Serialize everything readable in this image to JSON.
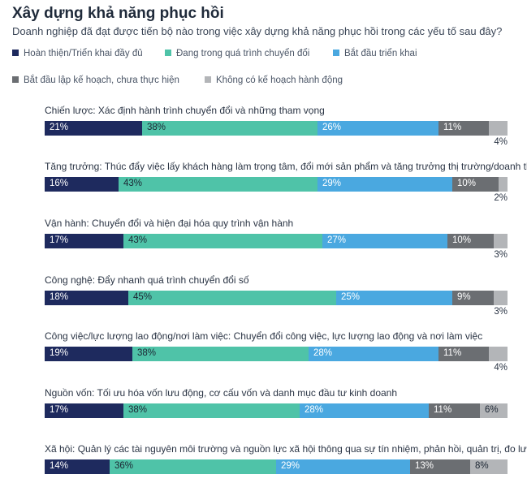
{
  "title": "Xây dựng khả năng phục hồi",
  "subtitle": "Doanh nghiệp đã đạt được tiến bộ nào trong việc xây dựng khả năng phục hồi trong các yếu tố sau đây?",
  "legend": [
    {
      "label": "Hoàn thiện/Triển khai đầy đủ",
      "color": "#1e2a5e"
    },
    {
      "label": "Đang trong quá trình chuyển đổi",
      "color": "#4fc3a8"
    },
    {
      "label": "Bắt đầu triển khai",
      "color": "#4aa8e0"
    },
    {
      "label": "Bắt đầu lập kế hoạch, chưa thực hiện",
      "color": "#6b6e72"
    },
    {
      "label": "Không có kế hoạch hành động",
      "color": "#b3b5b8"
    }
  ],
  "chart_data": {
    "type": "bar",
    "orientation": "horizontal",
    "stacked": true,
    "unit": "%",
    "categories": [
      "Chiến lược: Xác định hành trình chuyển đổi và những tham vọng",
      "Tăng trưởng: Thúc đẩy việc lấy khách hàng làm trọng tâm, đổi mới sản phẩm và tăng trưởng thị trường/doanh thu",
      "Vận hành: Chuyển đổi và hiện đại hóa quy trình vận hành",
      "Công nghệ: Đẩy nhanh quá trình chuyển đổi số",
      "Công việc/lực lượng lao động/nơi làm việc: Chuyển đổi công việc, lực lượng lao động và nơi làm việc",
      "Nguồn vốn: Tối ưu hóa vốn lưu động, cơ cấu vốn và danh mục đầu tư kinh doanh",
      "Xã hội: Quản lý các tài nguyên môi trường và nguồn lực xã hội thông qua sự tín nhiệm, phản hồi, quản trị, đo lường"
    ],
    "series": [
      {
        "name": "Hoàn thiện/Triển khai đầy đủ",
        "values": [
          21,
          16,
          17,
          18,
          19,
          17,
          14
        ]
      },
      {
        "name": "Đang trong quá trình chuyển đổi",
        "values": [
          38,
          43,
          43,
          45,
          38,
          38,
          36
        ]
      },
      {
        "name": "Bắt đầu triển khai",
        "values": [
          26,
          29,
          27,
          25,
          28,
          28,
          29
        ]
      },
      {
        "name": "Bắt đầu lập kế hoạch, chưa thực hiện",
        "values": [
          11,
          10,
          10,
          9,
          11,
          11,
          13
        ]
      },
      {
        "name": "Không có kế hoạch hành động",
        "values": [
          4,
          2,
          3,
          3,
          4,
          6,
          8
        ]
      }
    ],
    "xlim": [
      0,
      100
    ],
    "label_colors": [
      "#ffffff",
      "#1c2633",
      "#ffffff",
      "#ffffff",
      "#1c2633"
    ]
  }
}
